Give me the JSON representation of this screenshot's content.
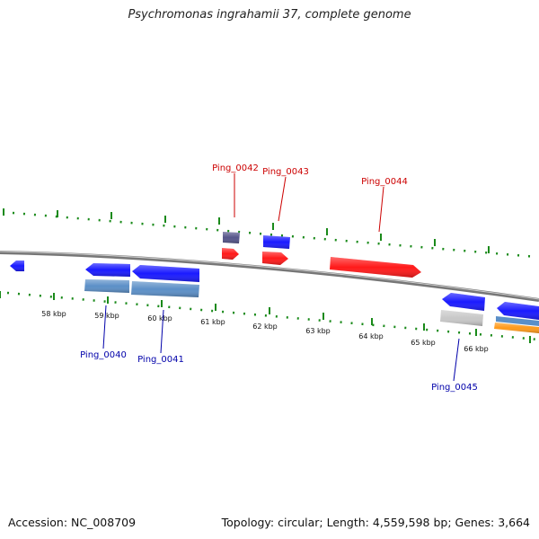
{
  "title": "Psychromonas ingrahamii 37, complete genome",
  "accession": "Accession: NC_008709",
  "summary": "Topology: circular; Length: 4,559,598 bp; Genes: 3,664",
  "colors": {
    "backbone": "#8a8a8a",
    "tick": "#1a8a1a",
    "forward_label": "#cc0000",
    "reverse_label": "#0000aa",
    "gene_red": "#ff1a1a",
    "gene_blue": "#1a1aff",
    "gene_steel": "#5b8fc7",
    "gene_slate": "#55558a",
    "gene_gray": "#c8c8c8",
    "gene_orange": "#ff9a1a"
  },
  "ticks": [
    "58 kbp",
    "59 kbp",
    "60 kbp",
    "61 kbp",
    "62 kbp",
    "63 kbp",
    "64 kbp",
    "65 kbp",
    "66 kbp"
  ],
  "gene_labels": {
    "forward": [
      "Ping_0042",
      "Ping_0043",
      "Ping_0044"
    ],
    "reverse": [
      "Ping_0040",
      "Ping_0041",
      "Ping_0045"
    ]
  }
}
